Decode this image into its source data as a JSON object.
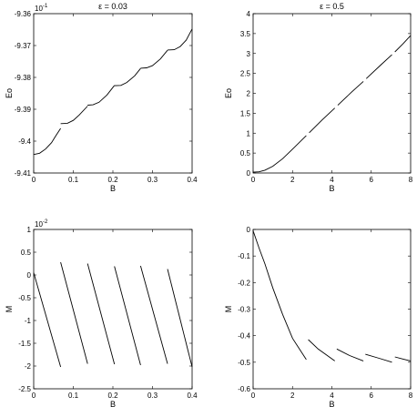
{
  "chart_data": [
    {
      "type": "line",
      "title": "ε = 0.03",
      "xlabel": "B",
      "ylabel": "Eo",
      "xlim": [
        0,
        0.4
      ],
      "ylim": [
        -9.41,
        -9.36
      ],
      "x_ticks": [
        "0",
        "0.1",
        "0.2",
        "0.3",
        "0.4"
      ],
      "y_ticks": [
        "-9.41",
        "-9.4",
        "-9.39",
        "-9.38",
        "-9.37",
        "-9.36"
      ],
      "y_multiplier": "10",
      "y_multiplier_exp": "-1",
      "series": [
        {
          "segments": [
            [
              [
                0.0,
                -9.4042
              ],
              [
                0.015,
                -9.4038
              ],
              [
                0.03,
                -9.4025
              ],
              [
                0.045,
                -9.4005
              ],
              [
                0.055,
                -9.3985
              ],
              [
                0.068,
                -9.396
              ]
            ],
            [
              [
                0.068,
                -9.3945
              ],
              [
                0.085,
                -9.3944
              ],
              [
                0.1,
                -9.3935
              ],
              [
                0.115,
                -9.3918
              ],
              [
                0.136,
                -9.389
              ]
            ],
            [
              [
                0.136,
                -9.3887
              ],
              [
                0.15,
                -9.3886
              ],
              [
                0.165,
                -9.3878
              ],
              [
                0.185,
                -9.3855
              ],
              [
                0.204,
                -9.3825
              ]
            ],
            [
              [
                0.204,
                -9.3826
              ],
              [
                0.22,
                -9.3825
              ],
              [
                0.235,
                -9.3816
              ],
              [
                0.255,
                -9.3795
              ],
              [
                0.27,
                -9.3772
              ]
            ],
            [
              [
                0.27,
                -9.3771
              ],
              [
                0.285,
                -9.377
              ],
              [
                0.3,
                -9.3763
              ],
              [
                0.32,
                -9.3742
              ],
              [
                0.338,
                -9.3715
              ]
            ],
            [
              [
                0.338,
                -9.3714
              ],
              [
                0.355,
                -9.3713
              ],
              [
                0.37,
                -9.3703
              ],
              [
                0.385,
                -9.3683
              ],
              [
                0.4,
                -9.3648
              ]
            ]
          ]
        }
      ]
    },
    {
      "type": "line",
      "title": "ε = 0.5",
      "xlabel": "B",
      "ylabel": "Eo",
      "xlim": [
        0,
        8
      ],
      "ylim": [
        0,
        4
      ],
      "x_ticks": [
        "0",
        "2",
        "4",
        "6",
        "8"
      ],
      "y_ticks": [
        "0",
        "0.5",
        "1",
        "1.5",
        "2",
        "2.5",
        "3",
        "3.5",
        "4"
      ],
      "series": [
        {
          "segments": [
            [
              [
                0.0,
                0.02
              ],
              [
                0.3,
                0.03
              ],
              [
                0.6,
                0.07
              ],
              [
                1.0,
                0.17
              ],
              [
                1.5,
                0.36
              ],
              [
                2.0,
                0.6
              ],
              [
                2.7,
                0.94
              ]
            ],
            [
              [
                2.85,
                1.01
              ],
              [
                3.5,
                1.33
              ],
              [
                4.15,
                1.63
              ]
            ],
            [
              [
                4.3,
                1.7
              ],
              [
                5.0,
                2.03
              ],
              [
                5.6,
                2.3
              ]
            ],
            [
              [
                5.75,
                2.37
              ],
              [
                6.5,
                2.72
              ],
              [
                7.05,
                2.97
              ]
            ],
            [
              [
                7.2,
                3.04
              ],
              [
                7.6,
                3.24
              ],
              [
                8.0,
                3.45
              ]
            ]
          ]
        }
      ]
    },
    {
      "type": "line",
      "title": "",
      "xlabel": "B",
      "ylabel": "M",
      "xlim": [
        0,
        0.4
      ],
      "ylim": [
        -2.5,
        1
      ],
      "x_ticks": [
        "0",
        "0.1",
        "0.2",
        "0.3",
        "0.4"
      ],
      "y_ticks": [
        "-2.5",
        "-2",
        "-1.5",
        "-1",
        "-0.5",
        "0",
        "0.5",
        "1"
      ],
      "y_multiplier": "10",
      "y_multiplier_exp": "-2",
      "series": [
        {
          "segments": [
            [
              [
                0.0,
                0.05
              ],
              [
                0.068,
                -2.02
              ]
            ],
            [
              [
                0.068,
                0.28
              ],
              [
                0.136,
                -1.95
              ]
            ],
            [
              [
                0.136,
                0.25
              ],
              [
                0.204,
                -1.96
              ]
            ],
            [
              [
                0.204,
                0.19
              ],
              [
                0.27,
                -1.98
              ]
            ],
            [
              [
                0.27,
                0.2
              ],
              [
                0.338,
                -1.95
              ]
            ],
            [
              [
                0.338,
                0.13
              ],
              [
                0.4,
                -2.02
              ]
            ]
          ]
        }
      ]
    },
    {
      "type": "line",
      "title": "",
      "xlabel": "B",
      "ylabel": "M",
      "xlim": [
        0,
        8
      ],
      "ylim": [
        -0.6,
        0
      ],
      "x_ticks": [
        "0",
        "2",
        "4",
        "6",
        "8"
      ],
      "y_ticks": [
        "-0.6",
        "-0.5",
        "-0.4",
        "-0.3",
        "-0.2",
        "-0.1",
        "0"
      ],
      "series": [
        {
          "segments": [
            [
              [
                0.0,
                -0.005
              ],
              [
                0.3,
                -0.07
              ],
              [
                0.6,
                -0.13
              ],
              [
                1.0,
                -0.22
              ],
              [
                1.5,
                -0.32
              ],
              [
                2.0,
                -0.41
              ],
              [
                2.7,
                -0.49
              ]
            ],
            [
              [
                2.8,
                -0.415
              ],
              [
                3.3,
                -0.45
              ],
              [
                4.15,
                -0.495
              ]
            ],
            [
              [
                4.25,
                -0.45
              ],
              [
                4.9,
                -0.475
              ],
              [
                5.6,
                -0.495
              ]
            ],
            [
              [
                5.7,
                -0.47
              ],
              [
                6.4,
                -0.485
              ],
              [
                7.05,
                -0.5
              ]
            ],
            [
              [
                7.2,
                -0.48
              ],
              [
                7.6,
                -0.488
              ],
              [
                8.0,
                -0.495
              ]
            ]
          ]
        }
      ]
    }
  ]
}
